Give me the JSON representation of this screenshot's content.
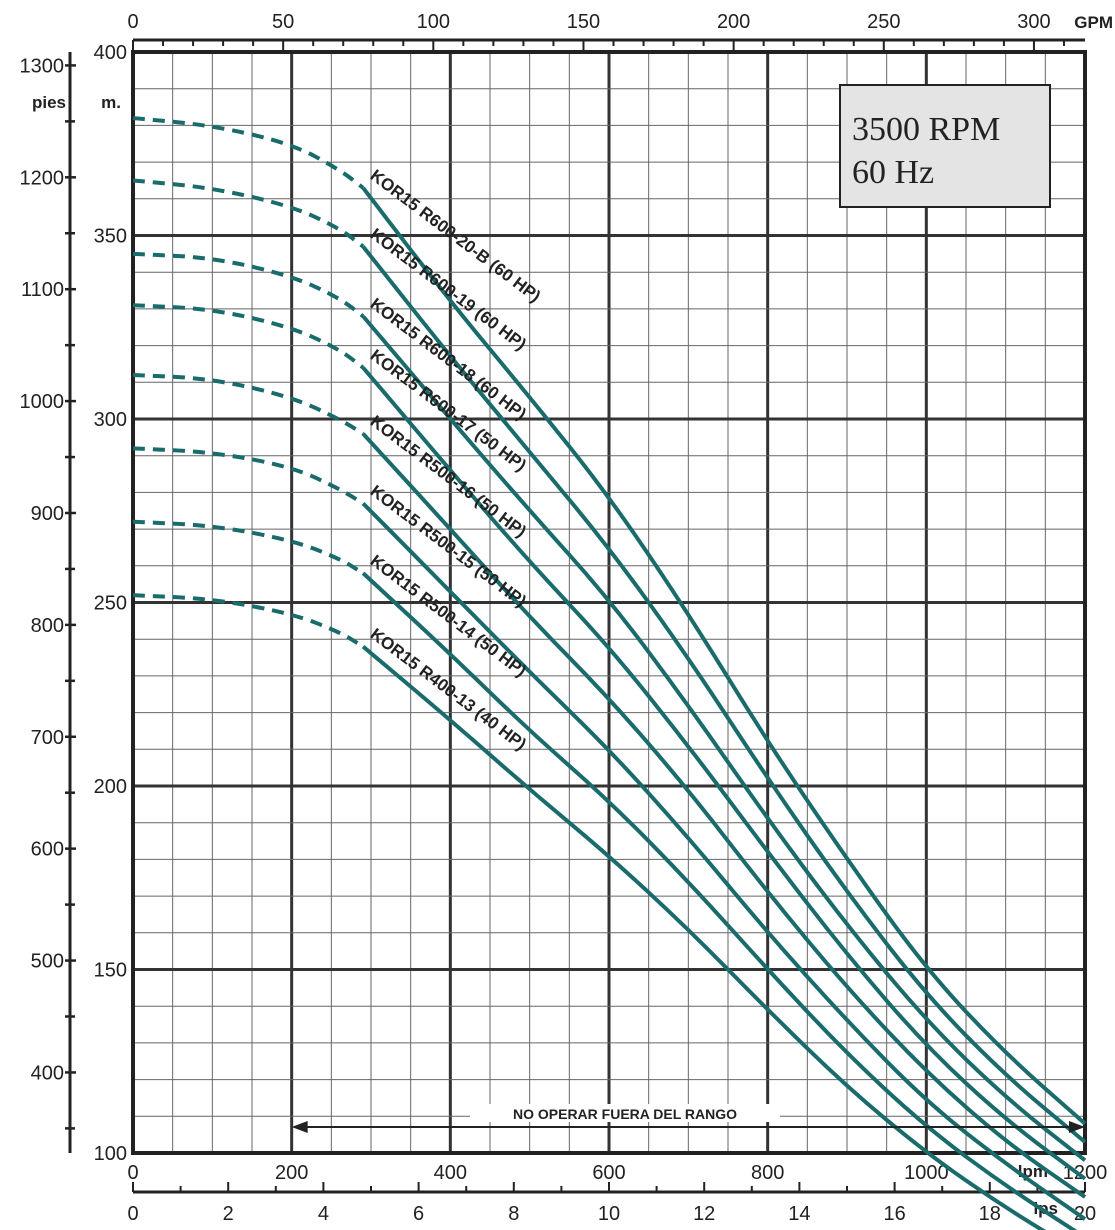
{
  "chart_data": {
    "type": "line",
    "title": "",
    "info_box": [
      "3500 RPM",
      "60 Hz"
    ],
    "operating_note": "NO OPERAR FUERA DEL RANGO",
    "operating_range_lpm": [
      200,
      1200
    ],
    "axes": {
      "x_bottom_primary": {
        "unit": "lpm",
        "range": [
          0,
          1200
        ],
        "ticks": [
          0,
          200,
          400,
          600,
          800,
          1000,
          1200
        ]
      },
      "x_bottom_secondary": {
        "unit": "lps",
        "range": [
          0,
          20
        ],
        "ticks": [
          0,
          2,
          4,
          6,
          8,
          10,
          12,
          14,
          16,
          18,
          20
        ]
      },
      "x_top": {
        "unit": "GPM",
        "range": [
          0,
          317
        ],
        "ticks": [
          0,
          50,
          100,
          150,
          200,
          250,
          300
        ]
      },
      "y_left_outer": {
        "unit": "pies",
        "range": [
          328,
          1312
        ],
        "ticks": [
          400,
          500,
          600,
          700,
          800,
          900,
          1000,
          1100,
          1200,
          1300
        ]
      },
      "y_left_inner": {
        "unit": "m.",
        "range": [
          100,
          400
        ],
        "ticks": [
          100,
          150,
          200,
          250,
          300,
          350,
          400
        ]
      }
    },
    "grid": true,
    "series": [
      {
        "name": "KOR15 R600-20-B (60 HP)",
        "dashed_until_lpm": 290,
        "points": [
          [
            0,
            382
          ],
          [
            100,
            380
          ],
          [
            200,
            375
          ],
          [
            260,
            368
          ],
          [
            290,
            363
          ],
          [
            400,
            332
          ],
          [
            500,
            306
          ],
          [
            600,
            279
          ],
          [
            700,
            247
          ],
          [
            800,
            212
          ],
          [
            900,
            180
          ],
          [
            1000,
            150
          ],
          [
            1100,
            127
          ],
          [
            1200,
            108
          ]
        ]
      },
      {
        "name": "KOR15 R600-19 (60 HP)",
        "dashed_until_lpm": 290,
        "points": [
          [
            0,
            365
          ],
          [
            100,
            363
          ],
          [
            200,
            358
          ],
          [
            260,
            352
          ],
          [
            290,
            347
          ],
          [
            400,
            317
          ],
          [
            500,
            291
          ],
          [
            600,
            265
          ],
          [
            700,
            235
          ],
          [
            800,
            202
          ],
          [
            900,
            171
          ],
          [
            1000,
            143
          ],
          [
            1100,
            121
          ],
          [
            1200,
            103
          ]
        ]
      },
      {
        "name": "KOR15 R600-18 (60 HP)",
        "dashed_until_lpm": 290,
        "points": [
          [
            0,
            345
          ],
          [
            100,
            344
          ],
          [
            200,
            339
          ],
          [
            260,
            333
          ],
          [
            290,
            328
          ],
          [
            400,
            300
          ],
          [
            500,
            275
          ],
          [
            600,
            251
          ],
          [
            700,
            222
          ],
          [
            800,
            191
          ],
          [
            900,
            162
          ],
          [
            1000,
            136
          ],
          [
            1100,
            115
          ],
          [
            1200,
            98
          ]
        ]
      },
      {
        "name": "KOR15 R600-17 (50 HP)",
        "dashed_until_lpm": 290,
        "points": [
          [
            0,
            331
          ],
          [
            100,
            330
          ],
          [
            200,
            325
          ],
          [
            260,
            319
          ],
          [
            290,
            314
          ],
          [
            400,
            286
          ],
          [
            500,
            261
          ],
          [
            600,
            238
          ],
          [
            700,
            211
          ],
          [
            800,
            182
          ],
          [
            900,
            154
          ],
          [
            1000,
            129
          ],
          [
            1100,
            109
          ],
          [
            1200,
            93
          ]
        ]
      },
      {
        "name": "KOR15 R500-16 (50 HP)",
        "dashed_until_lpm": 290,
        "points": [
          [
            0,
            312
          ],
          [
            100,
            311
          ],
          [
            200,
            306
          ],
          [
            260,
            300
          ],
          [
            290,
            296
          ],
          [
            400,
            270
          ],
          [
            500,
            246
          ],
          [
            600,
            224
          ],
          [
            700,
            199
          ],
          [
            800,
            171
          ],
          [
            900,
            145
          ],
          [
            1000,
            122
          ],
          [
            1100,
            103
          ],
          [
            1200,
            88
          ]
        ]
      },
      {
        "name": "KOR15 R500-15 (50 HP)",
        "dashed_until_lpm": 290,
        "points": [
          [
            0,
            292
          ],
          [
            100,
            291
          ],
          [
            200,
            287
          ],
          [
            260,
            281
          ],
          [
            290,
            277
          ],
          [
            400,
            253
          ],
          [
            500,
            231
          ],
          [
            600,
            210
          ],
          [
            700,
            186
          ],
          [
            800,
            160
          ],
          [
            900,
            136
          ],
          [
            1000,
            114
          ],
          [
            1100,
            97
          ],
          [
            1200,
            82
          ]
        ]
      },
      {
        "name": "KOR15 R500-14 (50 HP)",
        "dashed_until_lpm": 290,
        "points": [
          [
            0,
            272
          ],
          [
            100,
            271
          ],
          [
            200,
            267
          ],
          [
            260,
            262
          ],
          [
            290,
            258
          ],
          [
            400,
            236
          ],
          [
            500,
            215
          ],
          [
            600,
            196
          ],
          [
            700,
            174
          ],
          [
            800,
            150
          ],
          [
            900,
            127
          ],
          [
            1000,
            107
          ],
          [
            1100,
            91
          ],
          [
            1200,
            77
          ]
        ]
      },
      {
        "name": "KOR15 R400-13 (40 HP)",
        "dashed_until_lpm": 290,
        "points": [
          [
            0,
            252
          ],
          [
            100,
            251
          ],
          [
            200,
            247
          ],
          [
            260,
            242
          ],
          [
            290,
            238
          ],
          [
            400,
            218
          ],
          [
            500,
            199
          ],
          [
            600,
            181
          ],
          [
            700,
            161
          ],
          [
            800,
            139
          ],
          [
            900,
            118
          ],
          [
            1000,
            100
          ],
          [
            1100,
            85
          ],
          [
            1200,
            72
          ]
        ]
      }
    ]
  }
}
